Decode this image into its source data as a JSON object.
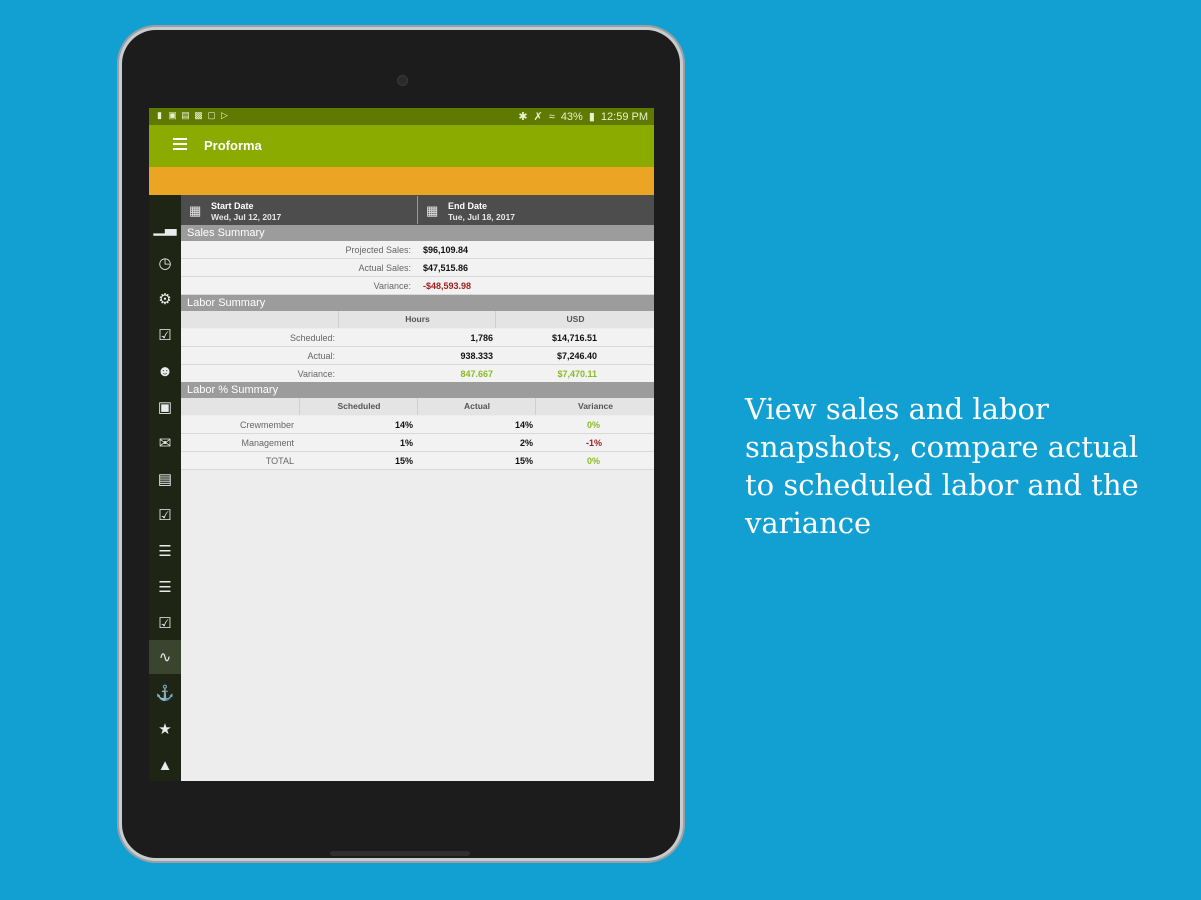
{
  "status_bar": {
    "battery": "43%",
    "time": "12:59 PM"
  },
  "app": {
    "title": "Proforma"
  },
  "dates": {
    "start_label": "Start Date",
    "start_value": "Wed, Jul 12, 2017",
    "end_label": "End Date",
    "end_value": "Tue, Jul 18, 2017"
  },
  "sales_summary": {
    "title": "Sales Summary",
    "rows": [
      {
        "label": "Projected Sales:",
        "value": "$96,109.84"
      },
      {
        "label": "Actual Sales:",
        "value": "$47,515.86"
      },
      {
        "label": "Variance:",
        "value": "-$48,593.98"
      }
    ]
  },
  "labor_summary": {
    "title": "Labor Summary",
    "columns": [
      "Hours",
      "USD"
    ],
    "rows": [
      {
        "label": "Scheduled:",
        "hours": "1,786",
        "usd": "$14,716.51"
      },
      {
        "label": "Actual:",
        "hours": "938.333",
        "usd": "$7,246.40"
      },
      {
        "label": "Variance:",
        "hours": "847.667",
        "usd": "$7,470.11"
      }
    ]
  },
  "labor_pct_summary": {
    "title": "Labor % Summary",
    "columns": [
      "Scheduled",
      "Actual",
      "Variance"
    ],
    "rows": [
      {
        "label": "Crewmember",
        "scheduled": "14%",
        "actual": "14%",
        "variance": "0%"
      },
      {
        "label": "Management",
        "scheduled": "1%",
        "actual": "2%",
        "variance": "-1%"
      },
      {
        "label": "TOTAL",
        "scheduled": "15%",
        "actual": "15%",
        "variance": "0%"
      }
    ]
  },
  "sidebar_icons": [
    "bar-chart-icon",
    "clock-icon",
    "gear-icon",
    "calendar-check-icon",
    "person-icon",
    "contact-card-icon",
    "envelope-icon",
    "document-icon",
    "checkbox-icon",
    "book-icon",
    "checklist-icon",
    "calendar-check-icon",
    "activity-chart-icon",
    "bank-icon",
    "calendar-star-icon",
    "graduation-cap-icon"
  ],
  "tagline": "View sales and labor snapshots, compare actual to scheduled labor and the variance",
  "colors": {
    "background": "#12a0d2",
    "appbar": "#8cab00",
    "statusbar": "#5e7a00",
    "accent_strip": "#eca425",
    "negative": "#a11e1e",
    "positive": "#8aba28"
  }
}
